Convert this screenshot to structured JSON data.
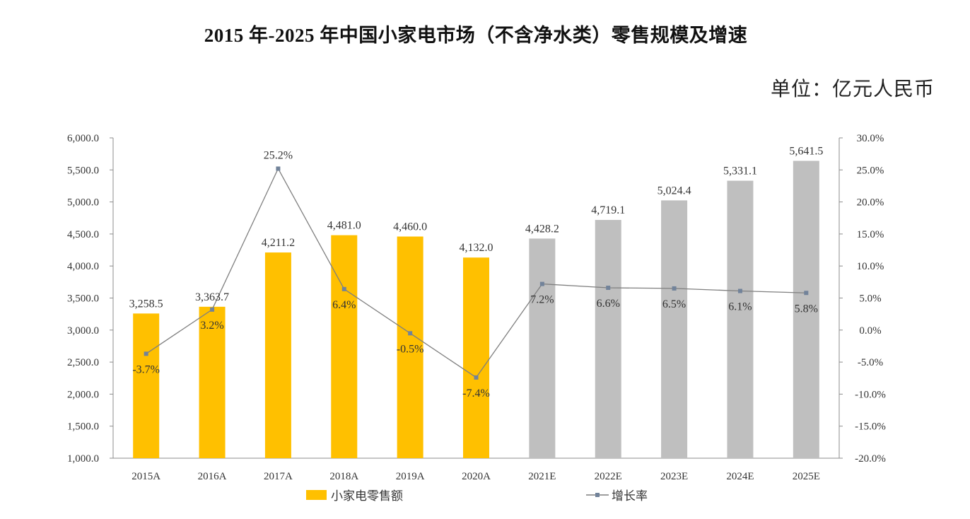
{
  "colors": {
    "axis": "#8C8C8C",
    "line": "#7F7F7F",
    "marker": "#72839A",
    "actual": "#FFC000",
    "estimate": "#BFBFBF"
  },
  "chart_data": {
    "type": "bar",
    "title": "2015 年-2025 年中国小家电市场（不含净水类）零售规模及增速",
    "unit": "单位：亿元人民币",
    "categories": [
      "2015A",
      "2016A",
      "2017A",
      "2018A",
      "2019A",
      "2020A",
      "2021E",
      "2022E",
      "2023E",
      "2024E",
      "2025E"
    ],
    "series": [
      {
        "name": "小家电零售额",
        "type": "bar",
        "values": [
          3258.5,
          3363.7,
          4211.2,
          4481.0,
          4460.0,
          4132.0,
          4428.2,
          4719.1,
          5024.4,
          5331.1,
          5641.5
        ],
        "labels": [
          "3,258.5",
          "3,363.7",
          "4,211.2",
          "4,481.0",
          "4,460.0",
          "4,132.0",
          "4,428.2",
          "4,719.1",
          "5,024.4",
          "5,331.1",
          "5,641.5"
        ],
        "bar_colors": [
          "#FFC000",
          "#FFC000",
          "#FFC000",
          "#FFC000",
          "#FFC000",
          "#FFC000",
          "#BFBFBF",
          "#BFBFBF",
          "#BFBFBF",
          "#BFBFBF",
          "#BFBFBF"
        ]
      },
      {
        "name": "增长率",
        "type": "line",
        "values": [
          -3.7,
          3.2,
          25.2,
          6.4,
          -0.5,
          -7.4,
          7.2,
          6.6,
          6.5,
          6.1,
          5.8
        ],
        "labels": [
          "-3.7%",
          "3.2%",
          "25.2%",
          "6.4%",
          "-0.5%",
          "-7.4%",
          "7.2%",
          "6.6%",
          "6.5%",
          "6.1%",
          "5.8%"
        ]
      }
    ],
    "y_left": {
      "ylim": [
        1000,
        6000
      ],
      "step": 500,
      "tick_labels": [
        "1,000.0",
        "1,500.0",
        "2,000.0",
        "2,500.0",
        "3,000.0",
        "3,500.0",
        "4,000.0",
        "4,500.0",
        "5,000.0",
        "5,500.0",
        "6,000.0"
      ]
    },
    "y_right": {
      "ylim": [
        -20,
        30
      ],
      "step": 5,
      "tick_labels": [
        "-20.0%",
        "-15.0%",
        "-10.0%",
        "-5.0%",
        "0.0%",
        "5.0%",
        "10.0%",
        "15.0%",
        "20.0%",
        "25.0%",
        "30.0%"
      ]
    },
    "grid": false,
    "legend": "bottom"
  }
}
